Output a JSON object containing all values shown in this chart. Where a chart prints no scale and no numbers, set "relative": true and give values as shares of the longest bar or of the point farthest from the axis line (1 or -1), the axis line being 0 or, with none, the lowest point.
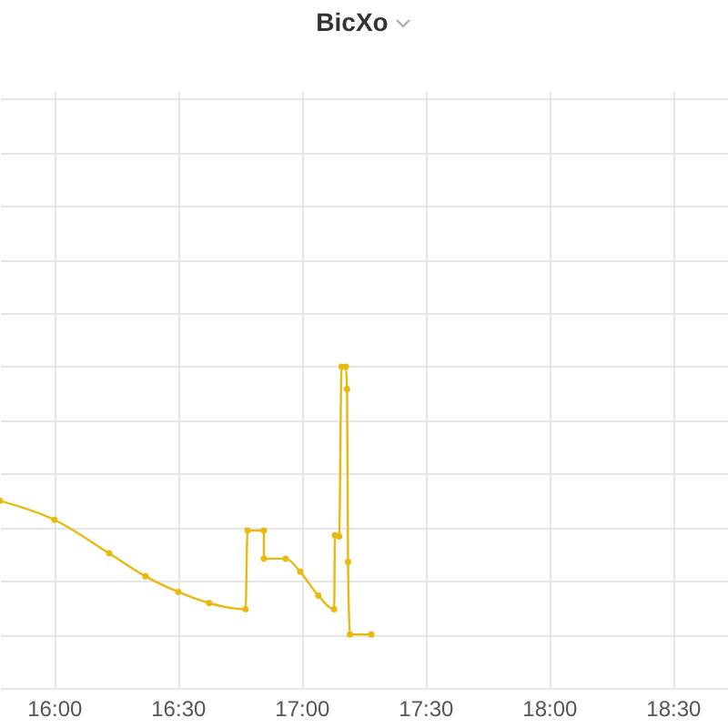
{
  "chart_data": {
    "type": "line",
    "title": "BicXo",
    "relative": true,
    "grid": true,
    "marker": "circle",
    "xlim": [
      15.782,
      18.723
    ],
    "xticks": [
      {
        "value": 16,
        "label": "16:00"
      },
      {
        "value": 16.5,
        "label": "16:30"
      },
      {
        "value": 17,
        "label": "17:00"
      },
      {
        "value": 17.5,
        "label": "17:30"
      },
      {
        "value": 18,
        "label": "18:00"
      },
      {
        "value": 18.5,
        "label": "18:30"
      }
    ],
    "x": [
      15.782,
      16.002,
      16.223,
      16.37,
      16.502,
      16.627,
      16.774,
      16.782,
      16.848,
      16.848,
      16.936,
      16.995,
      17.068,
      17.132,
      17.135,
      17.152,
      17.162,
      17.179,
      17.184,
      17.188,
      17.196,
      17.282
    ],
    "series": [
      {
        "color": "#e8b90f",
        "values": [
          0.499,
          0.428,
          0.303,
          0.217,
          0.159,
          0.117,
          0.094,
          0.388,
          0.388,
          0.283,
          0.283,
          0.234,
          0.145,
          0.094,
          0.37,
          0.366,
          1.0,
          1.0,
          0.917,
          0.271,
          0,
          0
        ]
      }
    ]
  }
}
